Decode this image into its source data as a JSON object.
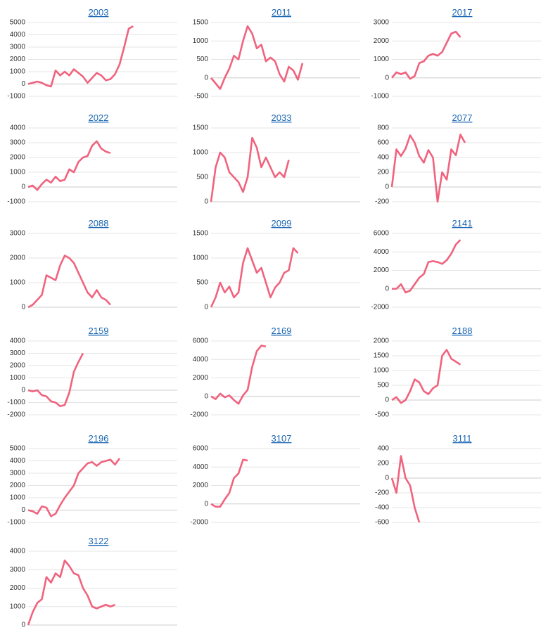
{
  "chart_data": [
    {
      "type": "line",
      "title": "2003",
      "color": "#f0637e",
      "grid": true,
      "ylim": [
        -1000,
        5000
      ],
      "yticks": [
        -1000,
        0,
        1000,
        2000,
        3000,
        4000,
        5000
      ],
      "values": [
        0,
        100,
        200,
        100,
        -100,
        -200,
        1100,
        700,
        1000,
        700,
        1200,
        900,
        600,
        100,
        500,
        900,
        700,
        300,
        400,
        800,
        1600,
        3000,
        4500,
        4700
      ]
    },
    {
      "type": "line",
      "title": "2011",
      "color": "#f0637e",
      "grid": true,
      "ylim": [
        -500,
        1500
      ],
      "yticks": [
        -500,
        0,
        500,
        1000,
        1500
      ],
      "values": [
        0,
        -150,
        -300,
        0,
        250,
        600,
        500,
        1000,
        1400,
        1200,
        800,
        900,
        450,
        550,
        450,
        100,
        -100,
        300,
        200,
        -50,
        400
      ]
    },
    {
      "type": "line",
      "title": "2017",
      "color": "#f0637e",
      "grid": true,
      "ylim": [
        -1000,
        3000
      ],
      "yticks": [
        -1000,
        0,
        1000,
        2000,
        3000
      ],
      "values": [
        0,
        300,
        200,
        300,
        -50,
        100,
        800,
        900,
        1200,
        1300,
        1200,
        1400,
        1900,
        2400,
        2500,
        2200
      ]
    },
    {
      "type": "line",
      "title": "2022",
      "color": "#f0637e",
      "grid": true,
      "ylim": [
        -1000,
        4000
      ],
      "yticks": [
        -1000,
        0,
        1000,
        2000,
        3000,
        4000
      ],
      "values": [
        0,
        100,
        -200,
        200,
        500,
        300,
        700,
        400,
        500,
        1200,
        1000,
        1700,
        2000,
        2100,
        2800,
        3100,
        2600,
        2400,
        2300
      ]
    },
    {
      "type": "line",
      "title": "2033",
      "color": "#f0637e",
      "grid": true,
      "ylim": [
        0,
        1500
      ],
      "yticks": [
        0,
        500,
        1000,
        1500
      ],
      "values": [
        0,
        700,
        1000,
        900,
        600,
        500,
        400,
        200,
        500,
        1300,
        1100,
        700,
        900,
        700,
        500,
        600,
        500,
        850
      ]
    },
    {
      "type": "line",
      "title": "2077",
      "color": "#f0637e",
      "grid": true,
      "ylim": [
        -200,
        800
      ],
      "yticks": [
        -200,
        0,
        200,
        400,
        600,
        800
      ],
      "values": [
        0,
        510,
        420,
        520,
        700,
        600,
        420,
        330,
        500,
        400,
        -200,
        200,
        100,
        510,
        430,
        710,
        600
      ]
    },
    {
      "type": "line",
      "title": "2088",
      "color": "#f0637e",
      "grid": true,
      "ylim": [
        0,
        3000
      ],
      "yticks": [
        0,
        1000,
        2000,
        3000
      ],
      "values": [
        0,
        100,
        300,
        500,
        1300,
        1200,
        1100,
        1700,
        2100,
        2000,
        1800,
        1400,
        1000,
        600,
        400,
        700,
        400,
        300,
        100
      ]
    },
    {
      "type": "line",
      "title": "2099",
      "color": "#f0637e",
      "grid": true,
      "ylim": [
        0,
        1500
      ],
      "yticks": [
        0,
        500,
        1000,
        1500
      ],
      "values": [
        0,
        200,
        500,
        300,
        420,
        200,
        300,
        900,
        1200,
        950,
        700,
        800,
        500,
        200,
        400,
        500,
        700,
        750,
        1200,
        1100
      ]
    },
    {
      "type": "line",
      "title": "2141",
      "color": "#f0637e",
      "grid": true,
      "ylim": [
        -2000,
        6000
      ],
      "yticks": [
        -2000,
        0,
        2000,
        4000,
        6000
      ],
      "values": [
        0,
        0,
        500,
        -400,
        -200,
        500,
        1200,
        1600,
        2900,
        3000,
        2900,
        2700,
        3100,
        3800,
        4800,
        5300
      ]
    },
    {
      "type": "line",
      "title": "2159",
      "color": "#f0637e",
      "grid": true,
      "ylim": [
        -2000,
        4000
      ],
      "yticks": [
        -2000,
        -1000,
        0,
        1000,
        2000,
        3000,
        4000
      ],
      "values": [
        0,
        -100,
        0,
        -400,
        -500,
        -900,
        -1000,
        -1300,
        -1200,
        -200,
        1500,
        2300,
        3000
      ]
    },
    {
      "type": "line",
      "title": "2169",
      "color": "#f0637e",
      "grid": true,
      "ylim": [
        -2000,
        6000
      ],
      "yticks": [
        -2000,
        0,
        2000,
        4000,
        6000
      ],
      "values": [
        0,
        -300,
        300,
        -100,
        100,
        -400,
        -800,
        100,
        700,
        3200,
        4900,
        5500,
        5400
      ]
    },
    {
      "type": "line",
      "title": "2188",
      "color": "#f0637e",
      "grid": true,
      "ylim": [
        -500,
        2000
      ],
      "yticks": [
        -500,
        0,
        500,
        1000,
        1500,
        2000
      ],
      "values": [
        0,
        100,
        -100,
        0,
        300,
        700,
        600,
        300,
        200,
        400,
        500,
        1500,
        1700,
        1400,
        1300,
        1200
      ]
    },
    {
      "type": "line",
      "title": "2196",
      "color": "#f0637e",
      "grid": true,
      "ylim": [
        -1000,
        5000
      ],
      "yticks": [
        -1000,
        0,
        1000,
        2000,
        3000,
        4000,
        5000
      ],
      "values": [
        0,
        -100,
        -300,
        300,
        200,
        -500,
        -300,
        400,
        1000,
        1500,
        2000,
        3000,
        3400,
        3800,
        3900,
        3600,
        3900,
        4000,
        4100,
        3700,
        4200
      ]
    },
    {
      "type": "line",
      "title": "3107",
      "color": "#f0637e",
      "grid": true,
      "ylim": [
        -2000,
        6000
      ],
      "yticks": [
        -2000,
        0,
        2000,
        4000,
        6000
      ],
      "values": [
        0,
        -300,
        -300,
        500,
        1200,
        2800,
        3300,
        4800,
        4700
      ]
    },
    {
      "type": "line",
      "title": "3111",
      "color": "#f0637e",
      "grid": true,
      "ylim": [
        -600,
        400
      ],
      "yticks": [
        -600,
        -400,
        -200,
        0,
        200,
        400
      ],
      "values": [
        0,
        -200,
        300,
        0,
        -100,
        -400,
        -600
      ]
    },
    {
      "type": "line",
      "title": "3122",
      "color": "#f0637e",
      "grid": true,
      "ylim": [
        0,
        4000
      ],
      "yticks": [
        0,
        1000,
        2000,
        3000,
        4000
      ],
      "values": [
        0,
        700,
        1200,
        1400,
        2600,
        2300,
        2800,
        2600,
        3500,
        3200,
        2800,
        2700,
        2000,
        1600,
        1000,
        900,
        1000,
        1100,
        1000,
        1100
      ]
    }
  ]
}
